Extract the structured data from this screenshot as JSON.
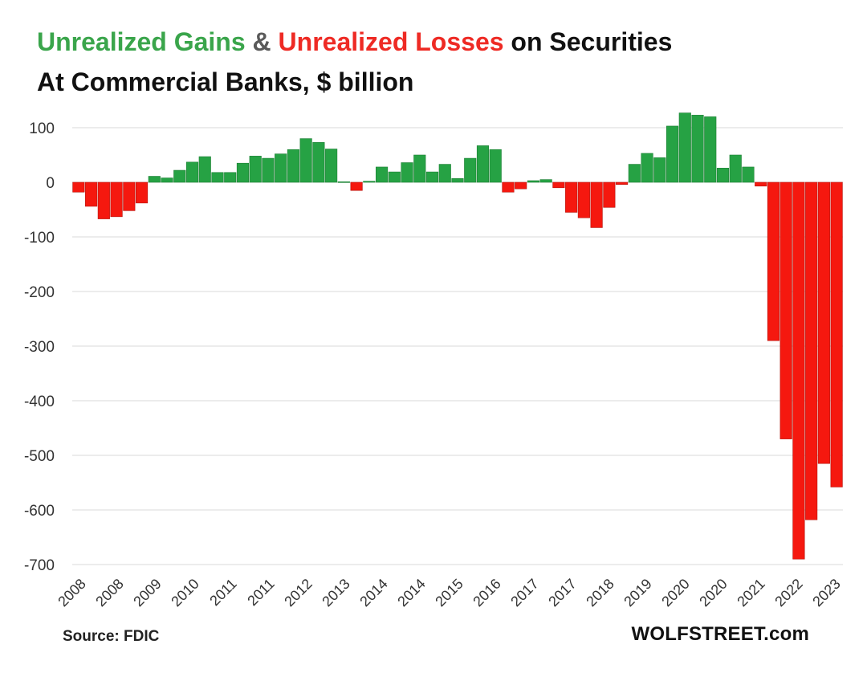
{
  "title": {
    "gains": "Unrealized Gains",
    "amp": "&",
    "losses": "Unrealized Losses",
    "rest": "on Securities",
    "line2": "At Commercial  Banks, $ billion"
  },
  "source": "Source: FDIC",
  "brand": "WOLFSTREET.com",
  "colors": {
    "gain": "#26a244",
    "loss": "#f5180f",
    "grid": "#d9d9d9",
    "axis_text": "#333333"
  },
  "chart_data": {
    "type": "bar",
    "ylim": [
      -700,
      100
    ],
    "yticks": [
      100,
      0,
      -100,
      -200,
      -300,
      -400,
      -500,
      -600,
      -700
    ],
    "grid": true,
    "legend": "none",
    "xtick_labels": [
      "2008",
      "2008",
      "2009",
      "2010",
      "2011",
      "2011",
      "2012",
      "2013",
      "2014",
      "2014",
      "2015",
      "2016",
      "2017",
      "2017",
      "2018",
      "2019",
      "2020",
      "2020",
      "2021",
      "2022",
      "2023"
    ],
    "values": [
      -18,
      -44,
      -67,
      -63,
      -52,
      -38,
      11,
      8,
      22,
      37,
      47,
      18,
      18,
      35,
      48,
      44,
      52,
      60,
      80,
      73,
      61,
      1,
      -15,
      2,
      28,
      19,
      36,
      50,
      19,
      33,
      7,
      44,
      67,
      60,
      -18,
      -12,
      3,
      5,
      -10,
      -55,
      -65,
      -83,
      -46,
      -4,
      33,
      53,
      45,
      103,
      127,
      123,
      120,
      26,
      50,
      28,
      -7,
      -290,
      -470,
      -690,
      -618,
      -515,
      -558
    ]
  }
}
